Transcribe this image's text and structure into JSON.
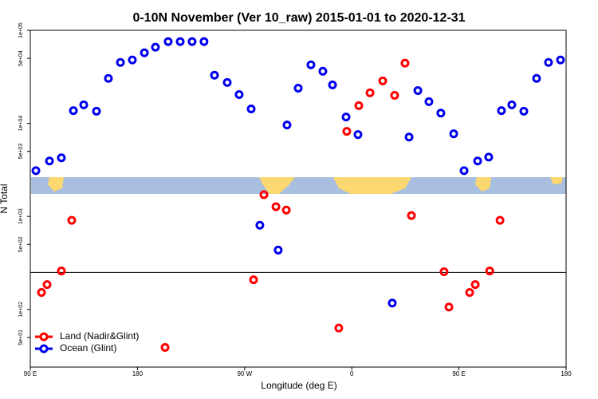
{
  "chart_data": {
    "type": "scatter",
    "title": "0-10N November (Ver 10_raw)   2015-01-01 to 2020-12-31",
    "x_label": "Longitude (deg E)",
    "y_label": "N Total",
    "log_y": true,
    "legend": "bottom-left",
    "xlim": [
      90,
      540
    ],
    "ylim": [
      24,
      100000
    ],
    "xticks": [
      {
        "value": 90,
        "label": "90 E"
      },
      180,
      {
        "value": 270,
        "label": "90 W"
      },
      {
        "value": 360,
        "label": "0"
      },
      {
        "value": 450,
        "label": "90 E"
      },
      {
        "value": 540,
        "label": "180"
      }
    ],
    "yticks": [
      {
        "value": 100000,
        "label": "1e+05"
      },
      {
        "value": 50000,
        "label": "5e+04"
      },
      {
        "value": 10000,
        "label": "1e+04"
      },
      {
        "value": 5000,
        "label": "5e+03"
      },
      {
        "value": 1000,
        "label": "1e+03"
      },
      {
        "value": 500,
        "label": "5e+02"
      },
      {
        "value": 100,
        "label": "1e+02"
      },
      {
        "value": 50,
        "label": "5e+01"
      }
    ],
    "reference_line": 250,
    "series": [
      {
        "name": "Land (Nadir&Glint)",
        "color": "#ff0000",
        "x": [
          124.8,
          99.4,
          104.1,
          116.1,
          203.2,
          277.5,
          286.2,
          296.3,
          305,
          349.1,
          355.8,
          365.9,
          375.3,
          386,
          396,
          404.7,
          410.1,
          437.5,
          441.6,
          459,
          463.7,
          475.8,
          484.5
        ],
        "values": [
          906,
          152,
          185,
          259,
          39,
          208,
          1710,
          1270,
          1170,
          63,
          8200,
          15500,
          21300,
          28600,
          20000,
          44400,
          1020,
          254,
          106,
          152,
          185,
          259,
          906
        ]
      },
      {
        "name": "Ocean (Glint)",
        "color": "#0000ee",
        "x": [
          94.7,
          106.1,
          116.1,
          126.2,
          134.9,
          145.6,
          155.6,
          165.7,
          175.7,
          185.8,
          195.1,
          205.8,
          215.9,
          225.9,
          235.9,
          244.7,
          255.4,
          265.4,
          275.5,
          282.8,
          298.2,
          305.6,
          315,
          325.7,
          335.7,
          343.8,
          355.2,
          365.2,
          394,
          408.1,
          415.5,
          424.8,
          434.8,
          445.6,
          454.3,
          465.7,
          475,
          485.7,
          494.4,
          504.5,
          515.2,
          525.2,
          535.3
        ],
        "values": [
          3100,
          3940,
          4260,
          13700,
          15800,
          13500,
          30400,
          45200,
          48000,
          57400,
          65900,
          75700,
          75700,
          75700,
          75700,
          32900,
          27500,
          20400,
          14300,
          803,
          434,
          9600,
          23900,
          42600,
          36300,
          25900,
          11700,
          7570,
          117,
          7130,
          22500,
          17100,
          12900,
          7720,
          3100,
          3940,
          4340,
          13700,
          15800,
          13500,
          30400,
          45200,
          48000
        ]
      }
    ]
  }
}
